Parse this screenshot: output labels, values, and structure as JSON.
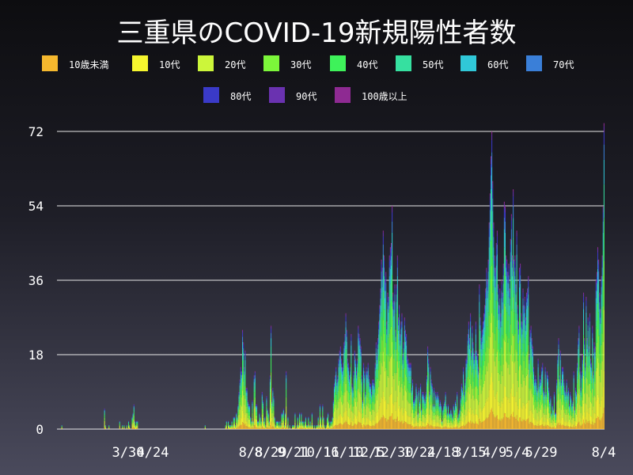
{
  "chart_data": {
    "type": "bar",
    "stacked": true,
    "title": "三重県のCOVID-19新規陽性者数",
    "ylim": [
      0,
      72
    ],
    "y_ticks": [
      0,
      18,
      36,
      54,
      72
    ],
    "x_tick_labels": [
      "3/30",
      "4/24",
      "8/8",
      "8/29",
      "9/21",
      "10/16",
      "11/10",
      "12/5",
      "12/30",
      "1/24",
      "2/18",
      "3/15",
      "4/9",
      "5/4",
      "5/29",
      "8/4"
    ],
    "grid": "horizontal",
    "legend_position": "top",
    "series": [
      {
        "name": "10歳未満",
        "color": "#f5b82e"
      },
      {
        "name": "10代",
        "color": "#f6f62e"
      },
      {
        "name": "20代",
        "color": "#ccf63a"
      },
      {
        "name": "30代",
        "color": "#7cf63a"
      },
      {
        "name": "40代",
        "color": "#3ef25a"
      },
      {
        "name": "50代",
        "color": "#36e0a0"
      },
      {
        "name": "60代",
        "color": "#30c8d8"
      },
      {
        "name": "70代",
        "color": "#3a7fd8"
      },
      {
        "name": "80代",
        "color": "#3a3ac8"
      },
      {
        "name": "90代",
        "color": "#6a32b0"
      },
      {
        "name": "100歳以上",
        "color": "#8e2a92"
      }
    ],
    "daily_totals": [
      0,
      0,
      0,
      0,
      0,
      1,
      0,
      0,
      0,
      0,
      0,
      0,
      0,
      0,
      0,
      0,
      0,
      0,
      0,
      0,
      0,
      0,
      0,
      0,
      0,
      0,
      0,
      0,
      0,
      0,
      0,
      0,
      0,
      0,
      0,
      0,
      0,
      0,
      0,
      0,
      0,
      0,
      0,
      0,
      0,
      0,
      0,
      0,
      0,
      0,
      0,
      0,
      0,
      5,
      1,
      0,
      0,
      0,
      1,
      0,
      0,
      0,
      0,
      0,
      0,
      0,
      0,
      0,
      0,
      0,
      2,
      0,
      0,
      1,
      0,
      1,
      0,
      0,
      1,
      0,
      2,
      1,
      0,
      0,
      3,
      4,
      6,
      2,
      1,
      2,
      2,
      0,
      0,
      0,
      0,
      0,
      0,
      0,
      0,
      0,
      0,
      0,
      0,
      0,
      0,
      0,
      0,
      0,
      0,
      0,
      0,
      0,
      0,
      0,
      0,
      0,
      0,
      0,
      0,
      0,
      0,
      0,
      0,
      0,
      0,
      0,
      0,
      0,
      0,
      0,
      0,
      0,
      0,
      0,
      0,
      0,
      0,
      0,
      0,
      0,
      0,
      0,
      0,
      0,
      0,
      0,
      0,
      0,
      0,
      0,
      0,
      0,
      0,
      0,
      0,
      0,
      0,
      0,
      0,
      0,
      0,
      0,
      0,
      0,
      0,
      0,
      1,
      0,
      0,
      0,
      0,
      0,
      0,
      0,
      0,
      0,
      0,
      0,
      0,
      0,
      0,
      0,
      0,
      0,
      0,
      0,
      0,
      0,
      0,
      1,
      2,
      0,
      2,
      1,
      1,
      1,
      2,
      1,
      3,
      3,
      1,
      4,
      3,
      6,
      9,
      12,
      15,
      14,
      24,
      21,
      15,
      19,
      10,
      10,
      7,
      6,
      6,
      3,
      2,
      7,
      2,
      13,
      14,
      6,
      6,
      2,
      2,
      4,
      3,
      2,
      9,
      7,
      2,
      3,
      1,
      8,
      5,
      4,
      2,
      13,
      25,
      7,
      10,
      8,
      3,
      1,
      2,
      2,
      2,
      1,
      2,
      1,
      4,
      4,
      5,
      1,
      4,
      14,
      1,
      3,
      0,
      1,
      0,
      0,
      1,
      1,
      1,
      4,
      0,
      1,
      3,
      1,
      4,
      2,
      4,
      2,
      2,
      1,
      2,
      3,
      1,
      1,
      3,
      1,
      2,
      1,
      4,
      1,
      0,
      1,
      0,
      1,
      1,
      3,
      1,
      6,
      3,
      1,
      6,
      3,
      1,
      0,
      1,
      3,
      4,
      2,
      1,
      2,
      2,
      3,
      7,
      11,
      13,
      15,
      12,
      13,
      17,
      19,
      20,
      17,
      15,
      16,
      21,
      23,
      28,
      24,
      17,
      16,
      13,
      15,
      23,
      11,
      10,
      14,
      19,
      17,
      14,
      17,
      25,
      23,
      22,
      20,
      13,
      7,
      16,
      14,
      9,
      15,
      14,
      16,
      13,
      11,
      11,
      9,
      12,
      12,
      11,
      16,
      21,
      18,
      22,
      26,
      30,
      34,
      41,
      39,
      48,
      42,
      36,
      38,
      26,
      33,
      32,
      42,
      44,
      45,
      54,
      33,
      31,
      35,
      24,
      35,
      42,
      27,
      30,
      23,
      26,
      28,
      18,
      21,
      27,
      24,
      23,
      18,
      17,
      16,
      16,
      16,
      10,
      12,
      7,
      7,
      8,
      11,
      9,
      4,
      10,
      7,
      11,
      5,
      9,
      9,
      8,
      7,
      9,
      13,
      20,
      17,
      9,
      15,
      12,
      11,
      6,
      10,
      6,
      9,
      8,
      9,
      8,
      6,
      7,
      6,
      2,
      5,
      6,
      7,
      9,
      6,
      4,
      6,
      4,
      4,
      5,
      4,
      3,
      6,
      5,
      7,
      6,
      9,
      3,
      4,
      5,
      8,
      11,
      10,
      15,
      9,
      12,
      17,
      18,
      23,
      26,
      22,
      28,
      19,
      25,
      21,
      18,
      19,
      26,
      19,
      18,
      15,
      35,
      27,
      22,
      24,
      26,
      28,
      30,
      34,
      39,
      36,
      41,
      50,
      57,
      66,
      72,
      60,
      50,
      42,
      39,
      45,
      48,
      35,
      30,
      34,
      28,
      36,
      33,
      40,
      55,
      54,
      42,
      41,
      38,
      40,
      34,
      46,
      52,
      42,
      58,
      41,
      42,
      35,
      48,
      30,
      26,
      39,
      40,
      28,
      26,
      34,
      30,
      32,
      27,
      33,
      34,
      37,
      18,
      24,
      25,
      22,
      20,
      15,
      12,
      13,
      12,
      10,
      17,
      11,
      13,
      12,
      15,
      16,
      10,
      9,
      15,
      9,
      14,
      13,
      10,
      7,
      8,
      4,
      6,
      5,
      9,
      4,
      4,
      12,
      18,
      22,
      13,
      19,
      12,
      15,
      15,
      12,
      10,
      9,
      12,
      9,
      10,
      6,
      9,
      8,
      6,
      7,
      14,
      5,
      10,
      9,
      16,
      22,
      25,
      15,
      10,
      14,
      18,
      33,
      22,
      16,
      32,
      22,
      27,
      20,
      28,
      17,
      16,
      25,
      14,
      21,
      20,
      36,
      38,
      44,
      41,
      33,
      29,
      37,
      42,
      54,
      74
    ]
  }
}
